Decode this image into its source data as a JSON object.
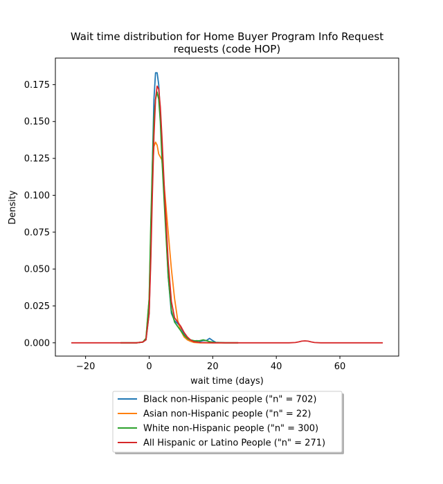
{
  "chart_data": {
    "type": "line",
    "title_line1": "Wait time distribution  for Home Buyer Program Info Request",
    "title_line2": "requests (code HOP)",
    "xlabel": "wait time (days)",
    "ylabel": "Density",
    "xlim": [
      -29.5,
      78.5
    ],
    "ylim": [
      -0.009,
      0.193
    ],
    "x_ticks": [
      -20,
      0,
      20,
      40,
      60
    ],
    "y_ticks": [
      0.0,
      0.025,
      0.05,
      0.075,
      0.1,
      0.125,
      0.15,
      0.175
    ],
    "y_tick_labels": [
      "0.000",
      "0.025",
      "0.050",
      "0.075",
      "0.100",
      "0.125",
      "0.150",
      "0.175"
    ],
    "grid": false,
    "legend_placement": "below plot, centered",
    "series": [
      {
        "name": "Black non-Hispanic people (\"n\" = 702)",
        "color": "#1f77b4",
        "points": [
          [
            -9,
            0
          ],
          [
            -4,
            0
          ],
          [
            -2,
            0.0005
          ],
          [
            -1,
            0.002
          ],
          [
            0,
            0.02
          ],
          [
            0.5,
            0.06
          ],
          [
            1,
            0.12
          ],
          [
            1.5,
            0.165
          ],
          [
            2,
            0.183
          ],
          [
            2.5,
            0.183
          ],
          [
            3,
            0.175
          ],
          [
            3.5,
            0.155
          ],
          [
            4,
            0.13
          ],
          [
            5,
            0.09
          ],
          [
            6,
            0.045
          ],
          [
            7,
            0.02
          ],
          [
            8,
            0.015
          ],
          [
            9,
            0.013
          ],
          [
            10,
            0.01
          ],
          [
            11,
            0.006
          ],
          [
            12,
            0.003
          ],
          [
            13,
            0.0015
          ],
          [
            14,
            0.001
          ],
          [
            15,
            0.0015
          ],
          [
            16,
            0.001
          ],
          [
            17,
            0.0015
          ],
          [
            18,
            0.0015
          ],
          [
            19,
            0.003
          ],
          [
            20,
            0.0015
          ],
          [
            21,
            0.0003
          ],
          [
            24,
            0
          ],
          [
            28,
            0
          ]
        ]
      },
      {
        "name": "Asian non-Hispanic people (\"n\" = 22)",
        "color": "#ff7f0e",
        "points": [
          [
            -9,
            0
          ],
          [
            -4,
            0
          ],
          [
            -2,
            0.0005
          ],
          [
            -1,
            0.003
          ],
          [
            0,
            0.03
          ],
          [
            0.5,
            0.075
          ],
          [
            1,
            0.115
          ],
          [
            1.5,
            0.133
          ],
          [
            2,
            0.136
          ],
          [
            2.5,
            0.134
          ],
          [
            3,
            0.128
          ],
          [
            4,
            0.124
          ],
          [
            5,
            0.1
          ],
          [
            6,
            0.075
          ],
          [
            7,
            0.05
          ],
          [
            8,
            0.03
          ],
          [
            9,
            0.015
          ],
          [
            10,
            0.008
          ],
          [
            11,
            0.004
          ],
          [
            12,
            0.002
          ],
          [
            13,
            0.001
          ],
          [
            14,
            0.0003
          ],
          [
            16,
            0
          ],
          [
            22,
            0
          ],
          [
            28,
            0
          ]
        ]
      },
      {
        "name": "White non-Hispanic people (\"n\" = 300)",
        "color": "#2ca02c",
        "points": [
          [
            -9,
            0
          ],
          [
            -4,
            0
          ],
          [
            -2,
            0.0005
          ],
          [
            -1,
            0.003
          ],
          [
            0,
            0.03
          ],
          [
            0.5,
            0.08
          ],
          [
            1,
            0.12
          ],
          [
            1.5,
            0.152
          ],
          [
            2,
            0.165
          ],
          [
            2.5,
            0.17
          ],
          [
            3,
            0.165
          ],
          [
            3.5,
            0.15
          ],
          [
            4,
            0.125
          ],
          [
            5,
            0.085
          ],
          [
            6,
            0.045
          ],
          [
            7,
            0.022
          ],
          [
            8,
            0.014
          ],
          [
            9,
            0.011
          ],
          [
            10,
            0.008
          ],
          [
            11,
            0.005
          ],
          [
            12,
            0.003
          ],
          [
            13,
            0.002
          ],
          [
            14,
            0.0015
          ],
          [
            15,
            0.0012
          ],
          [
            16,
            0.0015
          ],
          [
            17,
            0.002
          ],
          [
            18,
            0.0015
          ],
          [
            19,
            0.0008
          ],
          [
            21,
            0.0002
          ],
          [
            24,
            0
          ],
          [
            28,
            0
          ]
        ]
      },
      {
        "name": "All Hispanic or Latino People (\"n\" = 271)",
        "color": "#d62728",
        "points": [
          [
            -24.5,
            0
          ],
          [
            -10,
            0
          ],
          [
            -4,
            0
          ],
          [
            -2,
            0.0005
          ],
          [
            -1,
            0.002
          ],
          [
            0,
            0.02
          ],
          [
            0.5,
            0.055
          ],
          [
            1,
            0.1
          ],
          [
            1.5,
            0.14
          ],
          [
            2,
            0.165
          ],
          [
            2.5,
            0.174
          ],
          [
            3,
            0.172
          ],
          [
            3.5,
            0.16
          ],
          [
            4,
            0.14
          ],
          [
            5,
            0.095
          ],
          [
            6,
            0.055
          ],
          [
            7,
            0.028
          ],
          [
            8,
            0.017
          ],
          [
            9,
            0.014
          ],
          [
            10,
            0.011
          ],
          [
            11,
            0.007
          ],
          [
            12,
            0.004
          ],
          [
            13,
            0.002
          ],
          [
            14,
            0.0008
          ],
          [
            16,
            0.0002
          ],
          [
            20,
            0
          ],
          [
            30,
            0
          ],
          [
            44,
            0
          ],
          [
            46,
            0.0002
          ],
          [
            47,
            0.0006
          ],
          [
            48,
            0.0011
          ],
          [
            49,
            0.0013
          ],
          [
            50,
            0.0011
          ],
          [
            51,
            0.0006
          ],
          [
            52,
            0.0002
          ],
          [
            54,
            0
          ],
          [
            65,
            0
          ],
          [
            73.5,
            0
          ]
        ]
      }
    ]
  }
}
